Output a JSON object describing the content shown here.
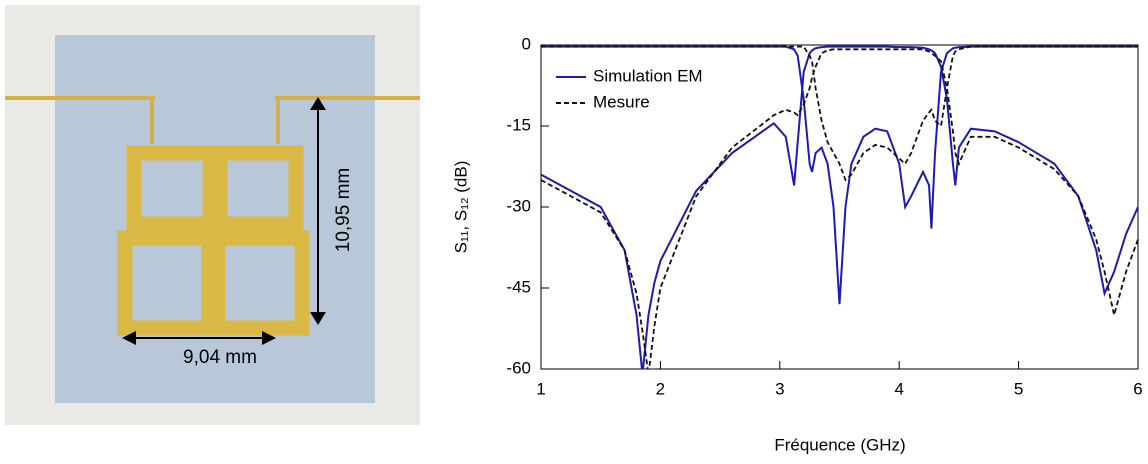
{
  "photo": {
    "height_label": "10,95 mm",
    "width_label": "9,04 mm"
  },
  "chart_data": {
    "type": "line",
    "x_label": "Fréquence (GHz)",
    "y_label": "S₁₁, S₁₂ (dB)",
    "xlim": [
      1,
      6
    ],
    "xticks": [
      1,
      2,
      3,
      4,
      5,
      6
    ],
    "ylim": [
      -60,
      0
    ],
    "yticks": [
      0,
      -15,
      -30,
      -45,
      -60
    ],
    "legend": "upper-left",
    "x": [
      1,
      1.5,
      1.7,
      1.8,
      1.85,
      1.9,
      1.95,
      2.0,
      2.3,
      2.6,
      2.95,
      3.05,
      3.12,
      3.15,
      3.2,
      3.25,
      3.27,
      3.3,
      3.35,
      3.4,
      3.45,
      3.5,
      3.55,
      3.6,
      3.7,
      3.8,
      3.9,
      4.0,
      4.05,
      4.1,
      4.2,
      4.25,
      4.27,
      4.3,
      4.35,
      4.4,
      4.45,
      4.47,
      4.5,
      4.6,
      4.8,
      5.0,
      5.3,
      5.5,
      5.65,
      5.72,
      5.8,
      5.9,
      6.0
    ],
    "series": [
      {
        "name": "Simulation EM",
        "color": "#1c1cb0",
        "dash": "solid",
        "curves": [
          [
            -24,
            -30,
            -38,
            -50,
            -61,
            -50,
            -44,
            -40,
            -27,
            -20,
            -14.5,
            -17,
            -26,
            -18,
            -5,
            -1.5,
            -1,
            -0.6,
            -0.4,
            -0.3,
            -0.3,
            -0.3,
            -0.3,
            -0.3,
            -0.3,
            -0.3,
            -0.3,
            -0.4,
            -0.4,
            -0.4,
            -0.5,
            -0.8,
            -1,
            -1.5,
            -4,
            -10,
            -22,
            -26,
            -19,
            -15.5,
            -16,
            -18,
            -22,
            -28,
            -38,
            -46,
            -42,
            -35,
            -30
          ],
          [
            -0.3,
            -0.3,
            -0.3,
            -0.3,
            -0.3,
            -0.3,
            -0.3,
            -0.3,
            -0.3,
            -0.3,
            -0.3,
            -0.3,
            -0.8,
            -2,
            -10,
            -22,
            -23.5,
            -20,
            -19,
            -22,
            -30,
            -48,
            -30,
            -22,
            -17,
            -15.5,
            -16,
            -22,
            -30,
            -28,
            -23.5,
            -26,
            -34,
            -20,
            -5,
            -1.5,
            -0.6,
            -0.5,
            -0.4,
            -0.3,
            -0.3,
            -0.3,
            -0.3,
            -0.3,
            -0.3,
            -0.3,
            -0.3,
            -0.3,
            -0.3
          ]
        ]
      },
      {
        "name": "Mesure",
        "color": "#111111",
        "dash": "dashed",
        "curves": [
          [
            -25,
            -31,
            -38,
            -46,
            -53,
            -61,
            -52,
            -45,
            -28,
            -19,
            -13,
            -12,
            -12.5,
            -13,
            -11,
            -8,
            -6,
            -4,
            -1.5,
            -1,
            -0.8,
            -0.8,
            -0.8,
            -0.8,
            -0.8,
            -0.8,
            -0.8,
            -0.8,
            -0.8,
            -0.8,
            -0.8,
            -1.2,
            -1.5,
            -2,
            -3,
            -8,
            -16,
            -20,
            -22,
            -17,
            -17,
            -19,
            -23,
            -28,
            -36,
            -42,
            -50,
            -42,
            -36
          ],
          [
            -0.3,
            -0.3,
            -0.3,
            -0.3,
            -0.3,
            -0.3,
            -0.3,
            -0.3,
            -0.3,
            -0.3,
            -0.3,
            -0.3,
            -0.3,
            -0.3,
            -0.3,
            -2,
            -3,
            -8,
            -14,
            -18,
            -20,
            -22,
            -25,
            -24,
            -20,
            -18.5,
            -19,
            -21,
            -22,
            -20,
            -14,
            -12.5,
            -12,
            -14,
            -15,
            -8,
            -2,
            -1.2,
            -0.8,
            -0.3,
            -0.3,
            -0.3,
            -0.3,
            -0.3,
            -0.3,
            -0.3,
            -0.3,
            -0.3,
            -0.3
          ]
        ]
      }
    ]
  }
}
